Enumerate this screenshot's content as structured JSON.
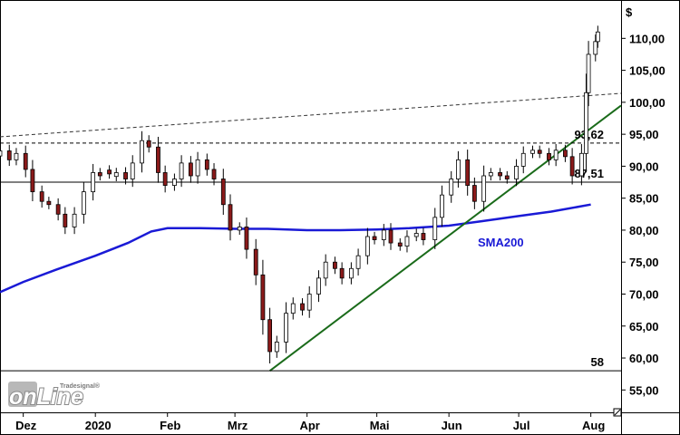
{
  "chart_data": {
    "type": "candlestick",
    "currency_label": "$",
    "ylim": [
      51.5,
      116
    ],
    "y_ticks": [
      {
        "value": 55,
        "label": "55,00"
      },
      {
        "value": 60,
        "label": "60,00"
      },
      {
        "value": 65,
        "label": "65,00"
      },
      {
        "value": 70,
        "label": "70,00"
      },
      {
        "value": 75,
        "label": "75,00"
      },
      {
        "value": 80,
        "label": "80,00"
      },
      {
        "value": 85,
        "label": "85,00"
      },
      {
        "value": 90,
        "label": "90,00"
      },
      {
        "value": 95,
        "label": "95,00"
      },
      {
        "value": 100,
        "label": "100,00"
      },
      {
        "value": 105,
        "label": "105,00"
      },
      {
        "value": 110,
        "label": "110,00"
      }
    ],
    "x_domain": [
      "2019-11-21",
      "2020-08-14"
    ],
    "x_ticks": [
      {
        "date": "2019-12-01",
        "label": "Dez"
      },
      {
        "date": "2020-01-01",
        "label": "2020"
      },
      {
        "date": "2020-02-01",
        "label": "Feb"
      },
      {
        "date": "2020-03-01",
        "label": "Mrz"
      },
      {
        "date": "2020-04-01",
        "label": "Apr"
      },
      {
        "date": "2020-05-01",
        "label": "Mai"
      },
      {
        "date": "2020-06-01",
        "label": "Jun"
      },
      {
        "date": "2020-07-01",
        "label": "Jul"
      },
      {
        "date": "2020-08-01",
        "label": "Aug"
      }
    ],
    "levels": [
      {
        "value": 93.62,
        "label": "93,62",
        "style": "dashed"
      },
      {
        "value": 87.51,
        "label": "87,51",
        "style": "solid"
      },
      {
        "value": 58,
        "label": "58",
        "style": "solid"
      }
    ],
    "trendlines": [
      {
        "name": "upper-channel",
        "color": "#333333",
        "style": "dashed",
        "points": [
          [
            "2019-11-21",
            94.6
          ],
          [
            "2020-08-14",
            101.4
          ]
        ]
      },
      {
        "name": "uptrend-support",
        "color": "#1a6b1a",
        "style": "solid",
        "points": [
          [
            "2020-03-16",
            58
          ],
          [
            "2020-08-14",
            99.5
          ]
        ]
      }
    ],
    "series": [
      {
        "name": "SMA200",
        "kind": "line",
        "color": "#1a1ad6",
        "points": [
          [
            "2019-11-21",
            70.3
          ],
          [
            "2019-12-01",
            71.9
          ],
          [
            "2019-12-15",
            73.8
          ],
          [
            "2020-01-01",
            76.0
          ],
          [
            "2020-01-15",
            78.0
          ],
          [
            "2020-01-25",
            79.8
          ],
          [
            "2020-02-01",
            80.3
          ],
          [
            "2020-02-15",
            80.3
          ],
          [
            "2020-03-01",
            80.2
          ],
          [
            "2020-03-15",
            80.2
          ],
          [
            "2020-04-01",
            80.0
          ],
          [
            "2020-04-15",
            80.0
          ],
          [
            "2020-05-01",
            80.1
          ],
          [
            "2020-05-15",
            80.3
          ],
          [
            "2020-06-01",
            80.7
          ],
          [
            "2020-06-15",
            81.4
          ],
          [
            "2020-07-01",
            82.2
          ],
          [
            "2020-07-15",
            82.9
          ],
          [
            "2020-08-01",
            84.0
          ]
        ]
      },
      {
        "name": "price",
        "kind": "candles",
        "up_color": "#ffffff",
        "down_color": "#8b1a1a",
        "points": [
          [
            "2019-11-21",
            92.4
          ],
          [
            "2019-11-25",
            91.0
          ],
          [
            "2019-11-28",
            92.0
          ],
          [
            "2019-12-02",
            89.5
          ],
          [
            "2019-12-05",
            86.0
          ],
          [
            "2019-12-09",
            84.5
          ],
          [
            "2019-12-12",
            84.0
          ],
          [
            "2019-12-16",
            82.5
          ],
          [
            "2019-12-19",
            80.5
          ],
          [
            "2019-12-23",
            82.5
          ],
          [
            "2019-12-27",
            86.0
          ],
          [
            "2019-12-31",
            89.0
          ],
          [
            "2020-01-03",
            88.5
          ],
          [
            "2020-01-07",
            88.8
          ],
          [
            "2020-01-10",
            89.0
          ],
          [
            "2020-01-14",
            88.0
          ],
          [
            "2020-01-17",
            90.5
          ],
          [
            "2020-01-21",
            94.0
          ],
          [
            "2020-01-24",
            93.0
          ],
          [
            "2020-01-28",
            89.0
          ],
          [
            "2020-01-31",
            87.0
          ],
          [
            "2020-02-04",
            88.0
          ],
          [
            "2020-02-07",
            90.5
          ],
          [
            "2020-02-11",
            88.5
          ],
          [
            "2020-02-14",
            91.0
          ],
          [
            "2020-02-18",
            89.5
          ],
          [
            "2020-02-21",
            88.0
          ],
          [
            "2020-02-25",
            84.0
          ],
          [
            "2020-02-28",
            80.0
          ],
          [
            "2020-03-03",
            80.5
          ],
          [
            "2020-03-06",
            77.0
          ],
          [
            "2020-03-10",
            73.0
          ],
          [
            "2020-03-13",
            66.0
          ],
          [
            "2020-03-16",
            61.0
          ],
          [
            "2020-03-19",
            62.5
          ],
          [
            "2020-03-23",
            67.0
          ],
          [
            "2020-03-26",
            68.5
          ],
          [
            "2020-03-30",
            67.5
          ],
          [
            "2020-04-02",
            70.0
          ],
          [
            "2020-04-06",
            72.5
          ],
          [
            "2020-04-09",
            75.0
          ],
          [
            "2020-04-13",
            74.0
          ],
          [
            "2020-04-16",
            72.5
          ],
          [
            "2020-04-20",
            74.0
          ],
          [
            "2020-04-23",
            76.0
          ],
          [
            "2020-04-27",
            79.0
          ],
          [
            "2020-04-30",
            78.5
          ],
          [
            "2020-05-04",
            80.0
          ],
          [
            "2020-05-07",
            78.0
          ],
          [
            "2020-05-11",
            77.5
          ],
          [
            "2020-05-14",
            79.0
          ],
          [
            "2020-05-18",
            79.5
          ],
          [
            "2020-05-21",
            78.5
          ],
          [
            "2020-05-26",
            82.0
          ],
          [
            "2020-05-29",
            85.5
          ],
          [
            "2020-06-02",
            88.0
          ],
          [
            "2020-06-05",
            91.0
          ],
          [
            "2020-06-09",
            87.0
          ],
          [
            "2020-06-12",
            84.5
          ],
          [
            "2020-06-16",
            88.5
          ],
          [
            "2020-06-19",
            89.0
          ],
          [
            "2020-06-23",
            88.5
          ],
          [
            "2020-06-26",
            88.0
          ],
          [
            "2020-06-30",
            90.0
          ],
          [
            "2020-07-03",
            92.0
          ],
          [
            "2020-07-07",
            92.5
          ],
          [
            "2020-07-10",
            92.0
          ],
          [
            "2020-07-14",
            91.0
          ],
          [
            "2020-07-17",
            92.5
          ],
          [
            "2020-07-21",
            91.5
          ],
          [
            "2020-07-24",
            88.5
          ],
          [
            "2020-07-28",
            92.0
          ],
          [
            "2020-07-30",
            101.5
          ],
          [
            "2020-07-31",
            107.5
          ],
          [
            "2020-08-03",
            109.5
          ],
          [
            "2020-08-04",
            111.0
          ]
        ]
      }
    ],
    "grid": false,
    "legend": "none"
  }
}
